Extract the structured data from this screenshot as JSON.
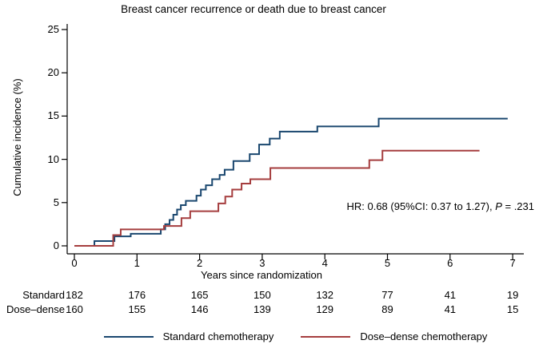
{
  "title": "Breast cancer recurrence or death due to breast cancer",
  "annotation": {
    "prefix": "HR: 0.68 (95%CI: 0.37 to 1.27), ",
    "p": "P",
    "suffix": " = .231"
  },
  "chart_data": {
    "type": "line",
    "subtype": "step",
    "title": "Breast cancer recurrence or death due to breast cancer",
    "xlabel": "Years since randomization",
    "ylabel": "Cumulative incidence (%)",
    "xlim": [
      0,
      7
    ],
    "ylim": [
      0,
      25
    ],
    "x_ticks": [
      0,
      1,
      2,
      3,
      4,
      5,
      6,
      7
    ],
    "y_ticks": [
      0,
      5,
      10,
      15,
      20,
      25
    ],
    "grid": false,
    "legend_position": "bottom",
    "annotation": "HR: 0.68 (95%CI: 0.37 to 1.27), P = .231",
    "series": [
      {
        "name": "Standard chemotherapy",
        "color": "#1a476f",
        "end_time": 6.92,
        "steps": [
          [
            0,
            0
          ],
          [
            0.32,
            0.55
          ],
          [
            0.64,
            1.1
          ],
          [
            0.9,
            1.4
          ],
          [
            1.38,
            1.9
          ],
          [
            1.45,
            2.5
          ],
          [
            1.52,
            3.0
          ],
          [
            1.58,
            3.6
          ],
          [
            1.64,
            4.2
          ],
          [
            1.7,
            4.7
          ],
          [
            1.78,
            5.2
          ],
          [
            1.95,
            5.8
          ],
          [
            2.02,
            6.5
          ],
          [
            2.1,
            7.0
          ],
          [
            2.2,
            7.7
          ],
          [
            2.32,
            8.2
          ],
          [
            2.4,
            8.8
          ],
          [
            2.54,
            9.8
          ],
          [
            2.8,
            10.6
          ],
          [
            2.95,
            11.7
          ],
          [
            3.12,
            12.4
          ],
          [
            3.28,
            13.2
          ],
          [
            3.88,
            13.8
          ],
          [
            4.86,
            14.7
          ]
        ]
      },
      {
        "name": "Dose–dense chemotherapy",
        "color": "#a53d3e",
        "end_time": 6.47,
        "steps": [
          [
            0,
            0
          ],
          [
            0.62,
            1.25
          ],
          [
            0.74,
            1.9
          ],
          [
            1.43,
            2.3
          ],
          [
            1.71,
            3.2
          ],
          [
            1.85,
            4.0
          ],
          [
            2.3,
            4.9
          ],
          [
            2.41,
            5.7
          ],
          [
            2.52,
            6.5
          ],
          [
            2.67,
            7.2
          ],
          [
            2.81,
            7.7
          ],
          [
            3.13,
            9.0
          ],
          [
            4.71,
            9.9
          ],
          [
            4.92,
            11.0
          ]
        ]
      }
    ]
  },
  "risk_table": {
    "rows": [
      {
        "label": "Standard",
        "counts": [
          182,
          176,
          165,
          150,
          132,
          77,
          41,
          19
        ]
      },
      {
        "label": "Dose–dense",
        "counts": [
          160,
          155,
          146,
          139,
          129,
          89,
          41,
          15
        ]
      }
    ]
  },
  "legend": {
    "items": [
      {
        "label": "Standard chemotherapy",
        "color": "#1a476f"
      },
      {
        "label": "Dose–dense chemotherapy",
        "color": "#a53d3e"
      }
    ]
  }
}
